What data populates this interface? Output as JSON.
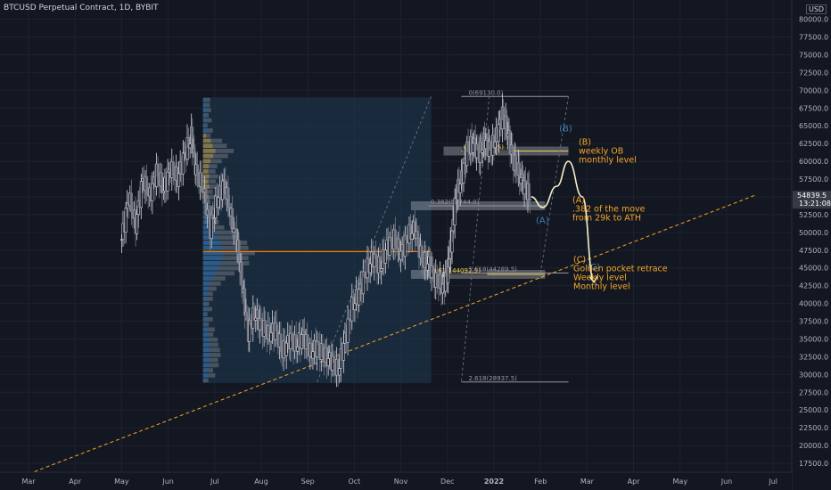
{
  "header": {
    "title": "BTCUSD Perpetual Contract, 1D, BYBIT",
    "currency": "USD"
  },
  "price_badge": {
    "price": "54839.5",
    "countdown": "13:21:08"
  },
  "chart_data": {
    "type": "candlestick",
    "title": "BTCUSD Perpetual Contract, 1D, BYBIT",
    "xlabel": "",
    "ylabel": "",
    "x_ticks": [
      "Mar",
      "Apr",
      "May",
      "Jun",
      "Jul",
      "Aug",
      "Sep",
      "Oct",
      "Nov",
      "Dec",
      "2022",
      "Feb",
      "Mar",
      "Apr",
      "May",
      "Jun",
      "Jul"
    ],
    "y_ticks": [
      80000.0,
      77500.0,
      75000.0,
      72500.0,
      70000.0,
      67500.0,
      65000.0,
      62500.0,
      60000.0,
      57500.0,
      55000.0,
      52500.0,
      50000.0,
      47500.0,
      45000.0,
      42500.0,
      40000.0,
      37500.0,
      35000.0,
      32500.0,
      30000.0,
      27500.0,
      25000.0,
      22500.0,
      20000.0,
      17500.0
    ],
    "y_tick_labels": [
      "80000.0",
      "77500.0",
      "75000.0",
      "72500.0",
      "70000.0",
      "67500.0",
      "65000.0",
      "62500.0",
      "60000.0",
      "57500.0",
      "55000.0",
      "52500.0",
      "50000.0",
      "47500.0",
      "45000.0",
      "42500.0",
      "40000.0",
      "37500.0",
      "35000.0",
      "32500.0",
      "30000.0",
      "27500.0",
      "25000.0",
      "22500.0",
      "20000.0",
      "17500.0"
    ],
    "ylim": [
      16500,
      81200
    ],
    "closes": [
      {
        "month": 2.0,
        "close": 49000
      },
      {
        "month": 2.15,
        "close": 55000
      },
      {
        "month": 2.3,
        "close": 51000
      },
      {
        "month": 2.45,
        "close": 57500
      },
      {
        "month": 2.6,
        "close": 55000
      },
      {
        "month": 2.75,
        "close": 58500
      },
      {
        "month": 2.9,
        "close": 56000
      },
      {
        "month": 3.05,
        "close": 59000
      },
      {
        "month": 3.2,
        "close": 57500
      },
      {
        "month": 3.35,
        "close": 61000
      },
      {
        "month": 3.5,
        "close": 63500
      },
      {
        "month": 3.6,
        "close": 58500
      },
      {
        "month": 3.75,
        "close": 56000
      },
      {
        "month": 3.9,
        "close": 50500
      },
      {
        "month": 4.05,
        "close": 54500
      },
      {
        "month": 4.2,
        "close": 57000
      },
      {
        "month": 4.35,
        "close": 52000
      },
      {
        "month": 4.5,
        "close": 48000
      },
      {
        "month": 4.6,
        "close": 42000
      },
      {
        "month": 4.72,
        "close": 36000
      },
      {
        "month": 4.85,
        "close": 38500
      },
      {
        "month": 5.0,
        "close": 37000
      },
      {
        "month": 5.15,
        "close": 35500
      },
      {
        "month": 5.3,
        "close": 36500
      },
      {
        "month": 5.45,
        "close": 33000
      },
      {
        "month": 5.6,
        "close": 35000
      },
      {
        "month": 5.75,
        "close": 34000
      },
      {
        "month": 5.9,
        "close": 35500
      },
      {
        "month": 6.05,
        "close": 33000
      },
      {
        "month": 6.2,
        "close": 34000
      },
      {
        "month": 6.35,
        "close": 32500
      },
      {
        "month": 6.5,
        "close": 32000
      },
      {
        "month": 6.65,
        "close": 30500
      },
      {
        "month": 6.8,
        "close": 35000
      },
      {
        "month": 6.95,
        "close": 39500
      },
      {
        "month": 7.1,
        "close": 41500
      },
      {
        "month": 7.25,
        "close": 44500
      },
      {
        "month": 7.4,
        "close": 46500
      },
      {
        "month": 7.55,
        "close": 45000
      },
      {
        "month": 7.7,
        "close": 48000
      },
      {
        "month": 7.85,
        "close": 49000
      },
      {
        "month": 8.0,
        "close": 47000
      },
      {
        "month": 8.15,
        "close": 49500
      },
      {
        "month": 8.3,
        "close": 50500
      },
      {
        "month": 8.45,
        "close": 46000
      },
      {
        "month": 8.6,
        "close": 45500
      },
      {
        "month": 8.75,
        "close": 43000
      },
      {
        "month": 8.9,
        "close": 42500
      },
      {
        "month": 9.0,
        "close": 44000
      },
      {
        "month": 9.08,
        "close": 48500
      },
      {
        "month": 9.18,
        "close": 55000
      },
      {
        "month": 9.3,
        "close": 57500
      },
      {
        "month": 9.42,
        "close": 61500
      },
      {
        "month": 9.55,
        "close": 62500
      },
      {
        "month": 9.68,
        "close": 61000
      },
      {
        "month": 9.8,
        "close": 63000
      },
      {
        "month": 9.92,
        "close": 61500
      },
      {
        "month": 10.05,
        "close": 63500
      },
      {
        "month": 10.18,
        "close": 66500
      },
      {
        "month": 10.3,
        "close": 64000
      },
      {
        "month": 10.42,
        "close": 60000
      },
      {
        "month": 10.55,
        "close": 58000
      },
      {
        "month": 10.68,
        "close": 56000
      },
      {
        "month": 10.8,
        "close": 54839.5
      }
    ],
    "volume_profile": {
      "poc_price": 47300,
      "range_low": 28800,
      "range_high": 69000
    },
    "fibonacci_levels": [
      {
        "label": "0(69130.0)",
        "price": 69130.0
      },
      {
        "label": "0.5(61453.5)",
        "price": 61453.5
      },
      {
        "label": "0.382(53744.0)",
        "price": 53744.0
      },
      {
        "label": "0.618(44092.5)",
        "price": 44092.5
      },
      {
        "label": "1.618(44289.5)",
        "price": 44289.5
      },
      {
        "label": "2.618(28937.5)",
        "price": 28937.5
      }
    ],
    "wave_labels": [
      "(A)",
      "(B)",
      "(C)"
    ],
    "annotations": [
      {
        "lines": [
          "(B)",
          "weekly OB",
          "monthly level"
        ],
        "price": 61453.5
      },
      {
        "lines": [
          "(A)",
          ".382 of the move",
          "from 29k to ATH"
        ],
        "price": 53744.0
      },
      {
        "lines": [
          "(C)",
          "Golden pocket retrace",
          "Weekly level",
          "Monthly level"
        ],
        "price": 44092.5
      }
    ],
    "trendline": {
      "start": {
        "month": 0.0,
        "price": 16000
      },
      "end": {
        "month": 15.6,
        "price": 55200
      }
    },
    "projected_path": [
      {
        "month": 10.8,
        "price": 55000
      },
      {
        "month": 11.05,
        "price": 53500
      },
      {
        "month": 11.35,
        "price": 56500
      },
      {
        "month": 11.6,
        "price": 60000
      },
      {
        "month": 11.9,
        "price": 55000
      },
      {
        "month": 12.15,
        "price": 43000
      }
    ]
  }
}
